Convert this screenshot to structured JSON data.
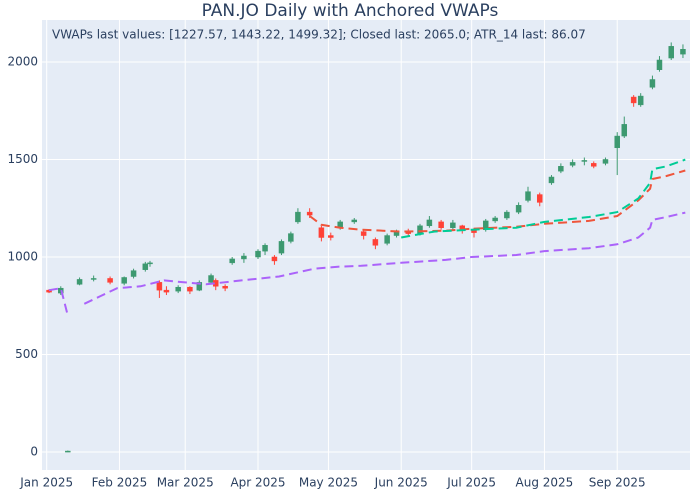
{
  "chart_data": {
    "type": "candlestick",
    "title": "PAN.JO Daily with Anchored VWAPs",
    "annotation": "VWAPs last values: [1227.57, 1443.22, 1499.32]; Closed last: 2065.0; ATR_14 last: 86.07",
    "x": [
      "2025-01-02",
      "2025-01-07",
      "2025-01-10",
      "2025-01-15",
      "2025-01-21",
      "2025-01-28",
      "2025-02-03",
      "2025-02-07",
      "2025-02-12",
      "2025-02-14",
      "2025-02-18",
      "2025-02-21",
      "2025-02-26",
      "2025-03-03",
      "2025-03-07",
      "2025-03-12",
      "2025-03-14",
      "2025-03-18",
      "2025-03-21",
      "2025-03-26",
      "2025-04-01",
      "2025-04-04",
      "2025-04-08",
      "2025-04-11",
      "2025-04-15",
      "2025-04-18",
      "2025-04-23",
      "2025-04-28",
      "2025-05-02",
      "2025-05-06",
      "2025-05-12",
      "2025-05-16",
      "2025-05-21",
      "2025-05-26",
      "2025-05-30",
      "2025-06-04",
      "2025-06-09",
      "2025-06-13",
      "2025-06-18",
      "2025-06-23",
      "2025-06-27",
      "2025-07-02",
      "2025-07-07",
      "2025-07-11",
      "2025-07-16",
      "2025-07-21",
      "2025-07-25",
      "2025-07-30",
      "2025-08-04",
      "2025-08-08",
      "2025-08-13",
      "2025-08-18",
      "2025-08-22",
      "2025-08-27",
      "2025-09-01",
      "2025-09-04",
      "2025-09-08",
      "2025-09-11",
      "2025-09-16",
      "2025-09-19",
      "2025-09-24",
      "2025-09-29"
    ],
    "open": [
      830,
      815,
      2,
      860,
      885,
      890,
      865,
      900,
      935,
      965,
      870,
      830,
      825,
      845,
      830,
      870,
      880,
      850,
      970,
      990,
      1000,
      1030,
      1000,
      1020,
      1080,
      1180,
      1230,
      1150,
      1110,
      1150,
      1180,
      1130,
      1090,
      1070,
      1110,
      1130,
      1120,
      1160,
      1180,
      1150,
      1160,
      1140,
      1140,
      1185,
      1200,
      1230,
      1290,
      1320,
      1380,
      1440,
      1470,
      1490,
      1480,
      1480,
      1560,
      1620,
      1820,
      1780,
      1870,
      1960,
      2020,
      2040
    ],
    "high": [
      835,
      850,
      8,
      895,
      905,
      900,
      900,
      940,
      975,
      980,
      880,
      850,
      855,
      850,
      880,
      915,
      890,
      860,
      1000,
      1020,
      1040,
      1070,
      1010,
      1090,
      1130,
      1250,
      1250,
      1160,
      1125,
      1190,
      1200,
      1140,
      1100,
      1120,
      1140,
      1145,
      1170,
      1210,
      1190,
      1190,
      1165,
      1150,
      1195,
      1210,
      1240,
      1280,
      1360,
      1330,
      1420,
      1480,
      1500,
      1510,
      1490,
      1510,
      1640,
      1720,
      1830,
      1840,
      1930,
      2030,
      2100,
      2090
    ],
    "low": [
      815,
      805,
      0,
      855,
      875,
      860,
      855,
      890,
      925,
      950,
      790,
      805,
      815,
      810,
      825,
      860,
      830,
      825,
      960,
      970,
      990,
      1010,
      960,
      1010,
      1070,
      1170,
      1200,
      1080,
      1085,
      1140,
      1170,
      1090,
      1040,
      1060,
      1100,
      1105,
      1110,
      1150,
      1140,
      1140,
      1120,
      1100,
      1130,
      1175,
      1190,
      1220,
      1280,
      1260,
      1370,
      1430,
      1460,
      1470,
      1455,
      1470,
      1420,
      1610,
      1770,
      1770,
      1860,
      1950,
      2010,
      2020
    ],
    "close": [
      820,
      840,
      5,
      885,
      890,
      870,
      895,
      930,
      965,
      970,
      830,
      820,
      845,
      825,
      870,
      905,
      850,
      840,
      990,
      1005,
      1030,
      1060,
      980,
      1080,
      1120,
      1230,
      1215,
      1100,
      1100,
      1180,
      1190,
      1110,
      1060,
      1110,
      1130,
      1120,
      1160,
      1190,
      1150,
      1175,
      1140,
      1125,
      1185,
      1200,
      1230,
      1265,
      1335,
      1280,
      1410,
      1465,
      1485,
      1495,
      1465,
      1500,
      1620,
      1680,
      1790,
      1825,
      1910,
      2010,
      2080,
      2065
    ],
    "increasing_color": "#3D9970",
    "decreasing_color": "#FF4136",
    "series": [
      {
        "color": "#ab63fa",
        "x": [
          "2025-01-02",
          "2025-01-07",
          "2025-01-10",
          "2025-01-14",
          "2025-01-17",
          "2025-01-24",
          "2025-01-31",
          "2025-02-10",
          "2025-02-20",
          "2025-03-01",
          "2025-03-10",
          "2025-03-25",
          "2025-04-10",
          "2025-04-25",
          "2025-05-05",
          "2025-05-15",
          "2025-06-01",
          "2025-06-20",
          "2025-07-01",
          "2025-07-20",
          "2025-08-01",
          "2025-08-20",
          "2025-09-01",
          "2025-09-10",
          "2025-09-15",
          "2025-09-16",
          "2025-09-22",
          "2025-09-30"
        ],
        "values": [
          830,
          840,
          700,
          null,
          760,
          800,
          840,
          850,
          880,
          870,
          860,
          880,
          900,
          940,
          950,
          955,
          970,
          985,
          1000,
          1010,
          1030,
          1045,
          1065,
          1100,
          1150,
          1190,
          1205,
          1227.57
        ]
      },
      {
        "color": "#EF553B",
        "x": [
          "2025-04-23",
          "2025-04-28",
          "2025-05-06",
          "2025-05-15",
          "2025-06-01",
          "2025-06-20",
          "2025-07-01",
          "2025-07-20",
          "2025-08-01",
          "2025-08-20",
          "2025-09-01",
          "2025-09-10",
          "2025-09-15",
          "2025-09-16",
          "2025-09-22",
          "2025-09-30"
        ],
        "values": [
          1210,
          1165,
          1150,
          1140,
          1130,
          1135,
          1145,
          1155,
          1170,
          1185,
          1210,
          1290,
          1350,
          1400,
          1415,
          1443.22
        ]
      },
      {
        "color": "#00cc96",
        "x": [
          "2025-06-01",
          "2025-06-15",
          "2025-07-01",
          "2025-07-20",
          "2025-08-01",
          "2025-08-20",
          "2025-09-01",
          "2025-09-10",
          "2025-09-15",
          "2025-09-16",
          "2025-09-22",
          "2025-09-30"
        ],
        "values": [
          1100,
          1130,
          1140,
          1150,
          1180,
          1205,
          1230,
          1300,
          1380,
          1450,
          1465,
          1499.32
        ]
      }
    ],
    "xlim": [
      "2024-12-30",
      "2025-10-02"
    ],
    "ylim": [
      -92,
      2215
    ],
    "yticks": [
      0,
      500,
      1000,
      1500,
      2000
    ],
    "xticks": [
      {
        "value": "2025-01-01",
        "label": "Jan 2025"
      },
      {
        "value": "2025-02-01",
        "label": "Feb 2025"
      },
      {
        "value": "2025-03-01",
        "label": "Mar 2025"
      },
      {
        "value": "2025-04-01",
        "label": "Apr 2025"
      },
      {
        "value": "2025-05-01",
        "label": "May 2025"
      },
      {
        "value": "2025-06-01",
        "label": "Jun 2025"
      },
      {
        "value": "2025-07-01",
        "label": "Jul 2025"
      },
      {
        "value": "2025-08-01",
        "label": "Aug 2025"
      },
      {
        "value": "2025-09-01",
        "label": "Sep 2025"
      }
    ],
    "grid": true
  }
}
